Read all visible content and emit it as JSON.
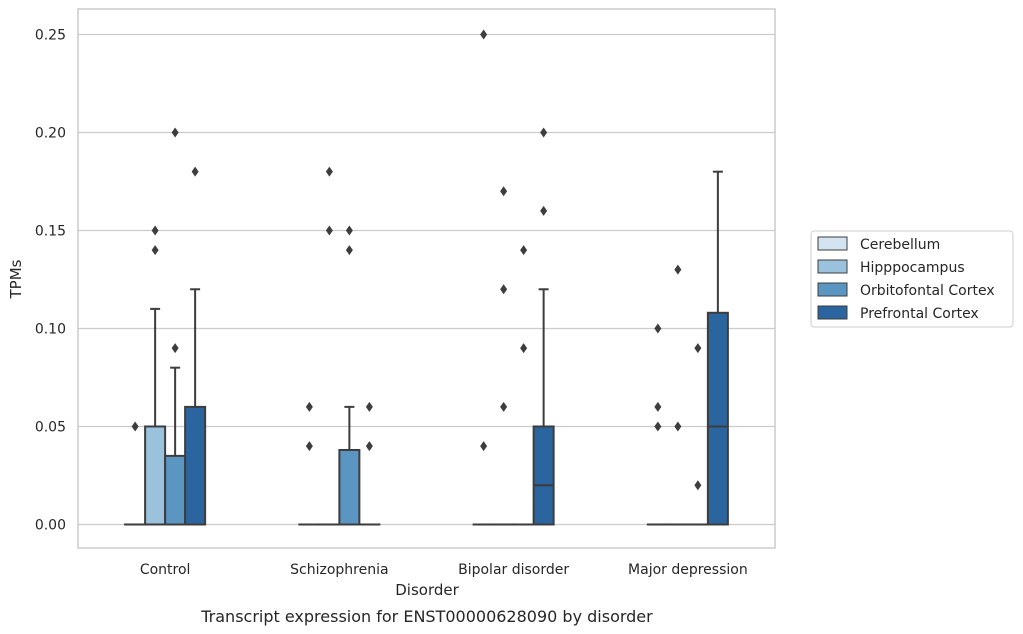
{
  "chart_data": {
    "type": "box",
    "caption": "Transcript expression for ENST00000628090 by disorder",
    "xlabel": "Disorder",
    "ylabel": "TPMs",
    "ylim": [
      -0.012,
      0.263
    ],
    "yticks": [
      "0.00",
      "0.05",
      "0.10",
      "0.15",
      "0.20",
      "0.25"
    ],
    "ytick_values": [
      0.0,
      0.05,
      0.1,
      0.15,
      0.2,
      0.25
    ],
    "grid": true,
    "legend_position": "right",
    "categories": [
      "Control",
      "Schizophrenia",
      "Bipolar disorder",
      "Major depression"
    ],
    "series": [
      {
        "name": "Cerebellum",
        "color": "#d3e3f2",
        "boxes": [
          {
            "q1": 0,
            "median": 0,
            "q3": 0,
            "whisker_low": 0,
            "whisker_high": 0,
            "outliers": [
              0.05
            ]
          },
          {
            "q1": 0,
            "median": 0,
            "q3": 0,
            "whisker_low": 0,
            "whisker_high": 0,
            "outliers": [
              0.06,
              0.04
            ]
          },
          {
            "q1": 0,
            "median": 0,
            "q3": 0,
            "whisker_low": 0,
            "whisker_high": 0,
            "outliers": [
              0.25,
              0.04
            ]
          },
          {
            "q1": 0,
            "median": 0,
            "q3": 0,
            "whisker_low": 0,
            "whisker_high": 0,
            "outliers": [
              0.1,
              0.06,
              0.05
            ]
          }
        ]
      },
      {
        "name": "Hipppocampus",
        "color": "#9ac2dd",
        "boxes": [
          {
            "q1": 0,
            "median": 0,
            "q3": 0.05,
            "whisker_low": 0,
            "whisker_high": 0.11,
            "outliers": [
              0.15,
              0.14
            ]
          },
          {
            "q1": 0,
            "median": 0,
            "q3": 0,
            "whisker_low": 0,
            "whisker_high": 0,
            "outliers": [
              0.18,
              0.15
            ]
          },
          {
            "q1": 0,
            "median": 0,
            "q3": 0,
            "whisker_low": 0,
            "whisker_high": 0,
            "outliers": [
              0.17,
              0.12,
              0.06
            ]
          },
          {
            "q1": 0,
            "median": 0,
            "q3": 0,
            "whisker_low": 0,
            "whisker_high": 0,
            "outliers": [
              0.13,
              0.05
            ]
          }
        ]
      },
      {
        "name": "Orbitofontal Cortex",
        "color": "#5b96c3",
        "boxes": [
          {
            "q1": 0,
            "median": 0,
            "q3": 0.035,
            "whisker_low": 0,
            "whisker_high": 0.08,
            "outliers": [
              0.2,
              0.09
            ]
          },
          {
            "q1": 0,
            "median": 0,
            "q3": 0.038,
            "whisker_low": 0,
            "whisker_high": 0.06,
            "outliers": [
              0.15,
              0.14
            ]
          },
          {
            "q1": 0,
            "median": 0,
            "q3": 0,
            "whisker_low": 0,
            "whisker_high": 0,
            "outliers": [
              0.14,
              0.09
            ]
          },
          {
            "q1": 0,
            "median": 0,
            "q3": 0,
            "whisker_low": 0,
            "whisker_high": 0,
            "outliers": [
              0.09,
              0.02
            ]
          }
        ]
      },
      {
        "name": "Prefrontal Cortex",
        "color": "#2b65a0",
        "boxes": [
          {
            "q1": 0,
            "median": 0,
            "q3": 0.06,
            "whisker_low": 0,
            "whisker_high": 0.12,
            "outliers": [
              0.18
            ]
          },
          {
            "q1": 0,
            "median": 0,
            "q3": 0,
            "whisker_low": 0,
            "whisker_high": 0,
            "outliers": [
              0.06,
              0.04
            ]
          },
          {
            "q1": 0,
            "median": 0.02,
            "q3": 0.05,
            "whisker_low": 0,
            "whisker_high": 0.12,
            "outliers": [
              0.2,
              0.16
            ]
          },
          {
            "q1": 0,
            "median": 0.05,
            "q3": 0.108,
            "whisker_low": 0,
            "whisker_high": 0.18,
            "outliers": []
          }
        ]
      }
    ]
  }
}
